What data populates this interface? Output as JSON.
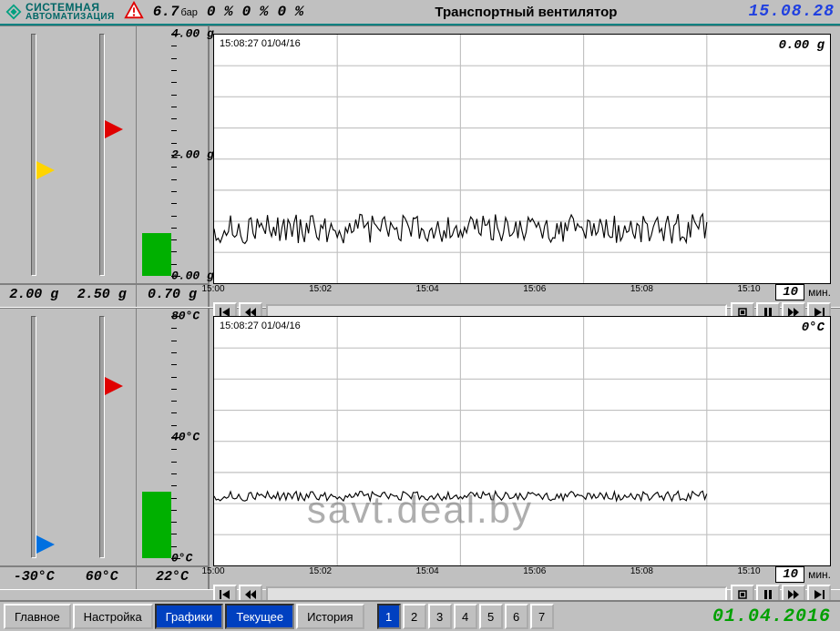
{
  "header": {
    "logo_line1": "СИСТЕМНАЯ",
    "logo_line2": "автоматизация",
    "pressure_value": "6.7",
    "pressure_unit": "бар",
    "pct1": "0 %",
    "pct2": "0 %",
    "pct3": "0 %",
    "title": "Транспортный вентилятор",
    "clock": "15.08.28",
    "clock_color": "#2040e0"
  },
  "panel1": {
    "slider_yellow": {
      "value": "2.00 g",
      "pos_pct": 56,
      "color": "#ffd400"
    },
    "slider_red": {
      "value": "2.50 g",
      "pos_pct": 40,
      "color": "#e00000"
    },
    "bar": {
      "max_label": "4.00 g",
      "mid_label": "2.00 g",
      "min_label": "0.00 g",
      "value": "0.70 g",
      "fill_pct": 17.5,
      "fill_color": "#00b000"
    },
    "chart": {
      "timestamp": "15:08:27  01/04/16",
      "current": "0.00 g",
      "x_ticks": [
        "15:00",
        "15:02",
        "15:04",
        "15:06",
        "15:08",
        "15:10"
      ],
      "y_grid_count": 8,
      "span_value": "10",
      "span_unit": "мин.",
      "trace_baseline_pct": 78,
      "trace_amplitude_pct": 6,
      "trace_end_pct": 80,
      "background_color": "#ffffff",
      "grid_color": "#c0c0c0",
      "trace_color": "#000000"
    }
  },
  "panel2": {
    "slider_blue": {
      "value": "-30°C",
      "pos_pct": 92,
      "color": "#0070e0"
    },
    "slider_red": {
      "value": "60°C",
      "pos_pct": 30,
      "color": "#e00000"
    },
    "bar": {
      "max_label": "80°C",
      "mid_label": "40°C",
      "min_label": "0°C",
      "value": "22°C",
      "fill_pct": 27.5,
      "fill_color": "#00b000"
    },
    "chart": {
      "timestamp": "15:08:27  01/04/16",
      "current": "0°C",
      "x_ticks": [
        "15:00",
        "15:02",
        "15:04",
        "15:06",
        "15:08",
        "15:10"
      ],
      "y_grid_count": 8,
      "span_value": "10",
      "span_unit": "мин.",
      "trace_baseline_pct": 72,
      "trace_amplitude_pct": 2,
      "trace_end_pct": 80,
      "background_color": "#ffffff",
      "grid_color": "#c0c0c0",
      "trace_color": "#000000"
    }
  },
  "footer": {
    "tabs": [
      {
        "label": "Главное",
        "active": false
      },
      {
        "label": "Настройка",
        "active": false
      },
      {
        "label": "Графики",
        "active": true
      },
      {
        "label": "Текущее",
        "active": true
      },
      {
        "label": "История",
        "active": false
      }
    ],
    "pages": [
      {
        "n": "1",
        "active": true
      },
      {
        "n": "2",
        "active": false
      },
      {
        "n": "3",
        "active": false
      },
      {
        "n": "4",
        "active": false
      },
      {
        "n": "5",
        "active": false
      },
      {
        "n": "6",
        "active": false
      },
      {
        "n": "7",
        "active": false
      }
    ],
    "date": "01.04.2016",
    "date_color": "#00a000"
  },
  "watermark": "savt.deal.by"
}
